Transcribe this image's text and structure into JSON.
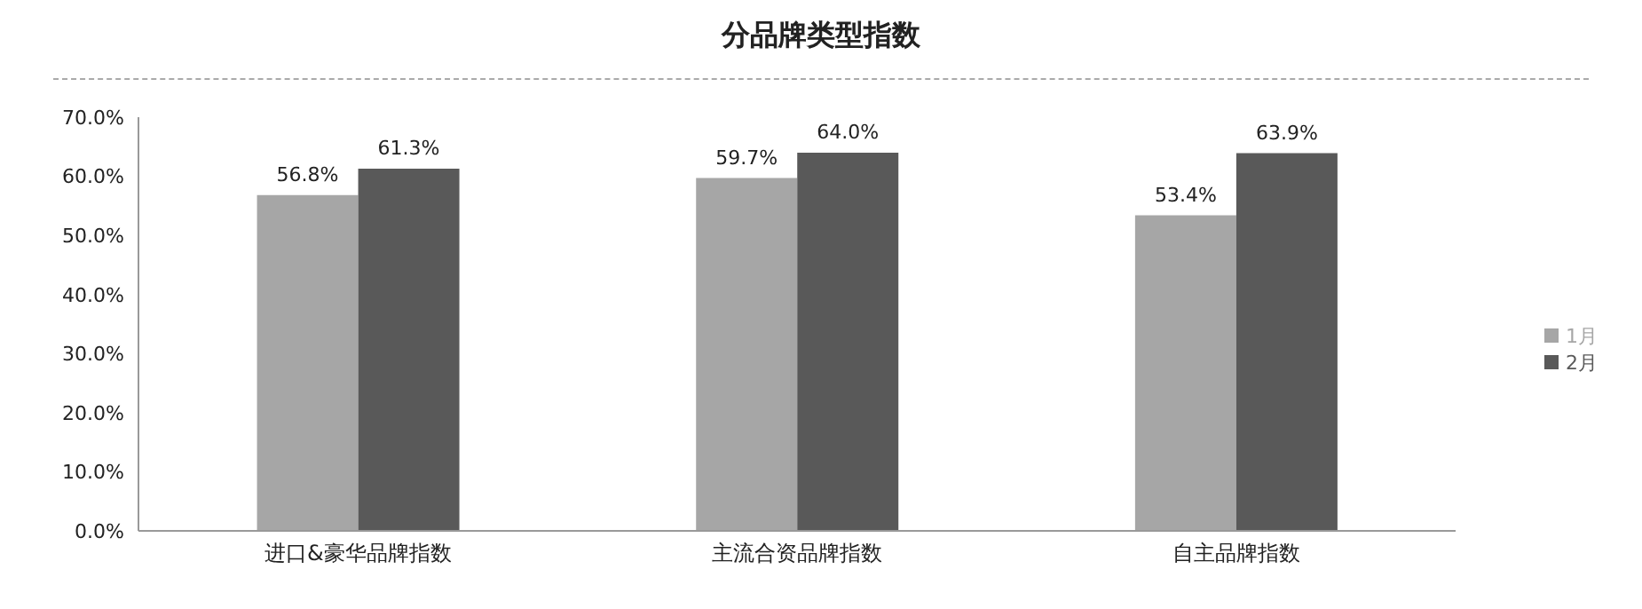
{
  "chart_data": {
    "type": "bar",
    "title": "分品牌类型指数",
    "categories": [
      "进口&豪华品牌指数",
      "主流合资品牌指数",
      "自主品牌指数"
    ],
    "series": [
      {
        "name": "1月",
        "color": "#a6a6a6",
        "values": [
          56.8,
          59.7,
          53.4
        ],
        "value_labels": [
          "56.8%",
          "59.7%",
          "53.4%"
        ]
      },
      {
        "name": "2月",
        "color": "#595959",
        "values": [
          61.3,
          64.0,
          63.9
        ],
        "value_labels": [
          "61.3%",
          "64.0%",
          "63.9%"
        ]
      }
    ],
    "ylim": [
      0,
      70
    ],
    "yticks": [
      {
        "value": 0,
        "label": "0.0%"
      },
      {
        "value": 10,
        "label": "10.0%"
      },
      {
        "value": 20,
        "label": "20.0%"
      },
      {
        "value": 30,
        "label": "30.0%"
      },
      {
        "value": 40,
        "label": "40.0%"
      },
      {
        "value": 50,
        "label": "50.0%"
      },
      {
        "value": 60,
        "label": "60.0%"
      },
      {
        "value": 70,
        "label": "70.0%"
      }
    ],
    "grid": false,
    "legend": "right"
  }
}
